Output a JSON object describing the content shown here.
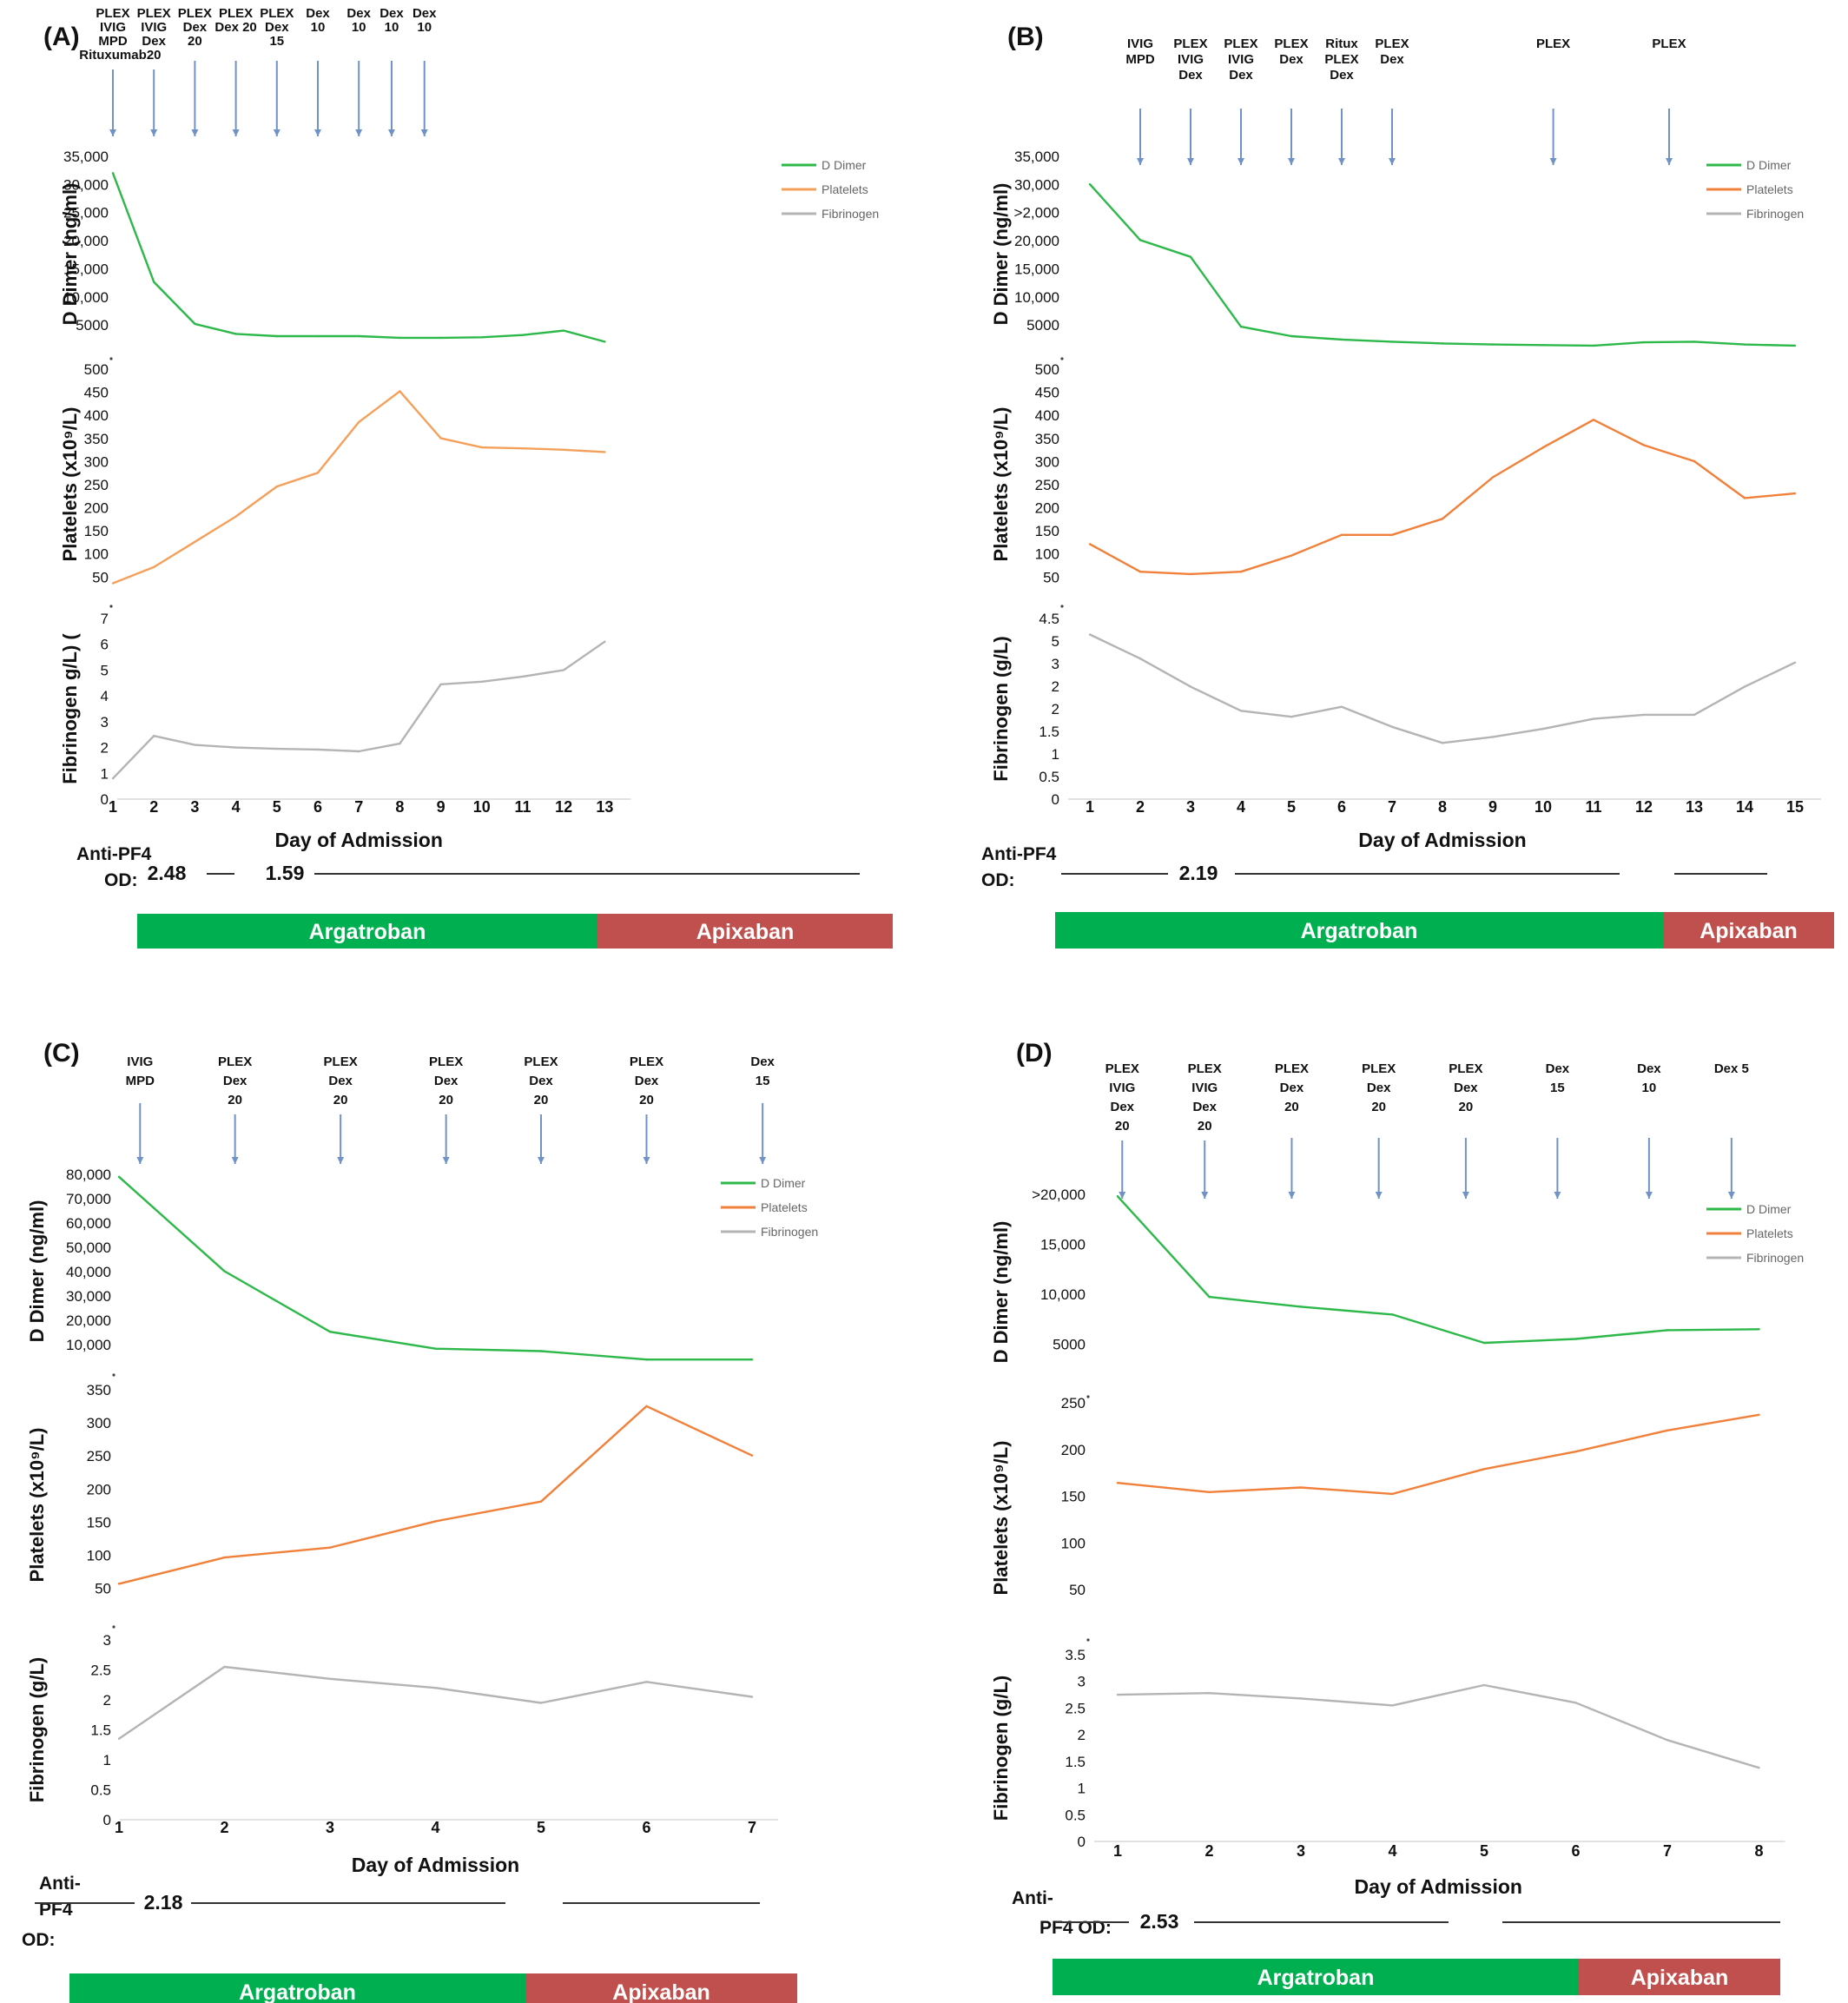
{
  "colors": {
    "ddimer": "#2db84a",
    "platelets": "#f5a05a",
    "platelets_dark": "#f0803a",
    "fibrinogen": "#b4b4b4",
    "arrow": "#6f93c6",
    "argatroban": "#00b050",
    "apixaban": "#c0504d"
  },
  "legend": {
    "ddimer": "D Dimer",
    "platelets": "Platelets",
    "fibrinogen": "Fibrinogen"
  },
  "xlabel": "Day of Admission",
  "chart_data": [
    {
      "type": "line",
      "panel": "(A)",
      "days": [
        "1",
        "2",
        "3",
        "4",
        "5",
        "6",
        "7",
        "8",
        "9",
        "10",
        "11",
        "12",
        "13"
      ],
      "interventions": [
        {
          "day": 1,
          "lines": [
            "PLEX",
            "IVIG",
            "MPD",
            "Rituxumab"
          ]
        },
        {
          "day": 2,
          "lines": [
            "PLEX",
            "IVIG",
            "Dex",
            "20"
          ]
        },
        {
          "day": 3,
          "lines": [
            "PLEX",
            "Dex",
            "20"
          ]
        },
        {
          "day": 4,
          "lines": [
            "PLEX",
            "Dex 20"
          ]
        },
        {
          "day": 5,
          "lines": [
            "PLEX",
            "Dex",
            "15"
          ]
        },
        {
          "day": 6,
          "lines": [
            "Dex",
            "10"
          ]
        },
        {
          "day": 7,
          "lines": [
            "Dex",
            "10"
          ]
        },
        {
          "day": 7.8,
          "lines": [
            "Dex",
            "10"
          ]
        },
        {
          "day": 8.6,
          "lines": [
            "Dex",
            "10"
          ]
        }
      ],
      "ddimer": {
        "ylabel": "D Dimer (ng/ml)",
        "ticks": [
          "35,000",
          "30,000",
          "25,000",
          "20,000",
          "15,000",
          "10,000",
          "5000"
        ],
        "ylim": [
          0,
          35000
        ],
        "x": [
          1,
          2,
          3,
          4,
          5,
          6,
          7,
          8,
          9,
          10,
          11,
          12,
          13
        ],
        "values": [
          32000,
          12500,
          5000,
          3200,
          2800,
          2800,
          2800,
          2500,
          2500,
          2600,
          3000,
          3800,
          1800
        ]
      },
      "platelets": {
        "ylabel": "Platelets (x10⁹/L)",
        "ticks": [
          "500",
          "450",
          "400",
          "350",
          "300",
          "250",
          "200",
          "150",
          "100",
          "50"
        ],
        "ylim": [
          0,
          500
        ],
        "x": [
          1,
          2,
          3,
          4,
          5,
          6,
          7,
          8,
          9,
          10,
          11,
          12,
          13
        ],
        "values": [
          35,
          70,
          125,
          180,
          245,
          275,
          385,
          452,
          350,
          330,
          328,
          325,
          320
        ]
      },
      "fibrinogen": {
        "ylabel": "Fibrinogen g/L) (",
        "ticks": [
          "7",
          "6",
          "5",
          "4",
          "3",
          "2",
          "1",
          "0"
        ],
        "ylim": [
          0,
          7
        ],
        "x": [
          1,
          2,
          3,
          4,
          5,
          6,
          7,
          8,
          9,
          10,
          11,
          12,
          13
        ],
        "values": [
          0.8,
          2.45,
          2.1,
          2.0,
          1.95,
          1.92,
          1.85,
          2.15,
          4.45,
          4.55,
          4.75,
          5.0,
          6.1
        ]
      },
      "antipf4": {
        "label1": "Anti-PF4",
        "label2": "OD:",
        "values": [
          {
            "day": 1,
            "value": "2.48"
          },
          {
            "day": 3,
            "value": "1.59"
          }
        ]
      },
      "medications": [
        {
          "name": "Argatroban",
          "color": "argatroban"
        },
        {
          "name": "Apixaban",
          "color": "apixaban"
        }
      ]
    },
    {
      "type": "line",
      "panel": "(B)",
      "days": [
        "1",
        "2",
        "3",
        "4",
        "5",
        "6",
        "7",
        "8",
        "9",
        "10",
        "11",
        "12",
        "13",
        "14",
        "15"
      ],
      "interventions": [
        {
          "day": 2,
          "lines": [
            "IVIG",
            "MPD"
          ]
        },
        {
          "day": 3,
          "lines": [
            "PLEX",
            "IVIG",
            "Dex"
          ]
        },
        {
          "day": 4,
          "lines": [
            "PLEX",
            "IVIG",
            "Dex"
          ]
        },
        {
          "day": 5,
          "lines": [
            "PLEX",
            "Dex"
          ]
        },
        {
          "day": 6,
          "lines": [
            "Ritux",
            "PLEX",
            "Dex"
          ]
        },
        {
          "day": 7,
          "lines": [
            "PLEX",
            "Dex"
          ]
        },
        {
          "day": 10.2,
          "lines": [
            "PLEX"
          ]
        },
        {
          "day": 12.5,
          "lines": [
            "PLEX"
          ]
        }
      ],
      "ddimer": {
        "ylabel": "D Dimer (ng/ml)",
        "ticks": [
          "35,000",
          "30,000",
          ">2,000",
          "20,000",
          "15,000",
          "10,000",
          "5000"
        ],
        "ylim": [
          0,
          35000
        ],
        "x": [
          1,
          2,
          3,
          4,
          5,
          6,
          7,
          8,
          9,
          10,
          11,
          12,
          13,
          14,
          15
        ],
        "values": [
          30000,
          20000,
          17000,
          4500,
          2800,
          2200,
          1800,
          1500,
          1300,
          1200,
          1100,
          1700,
          1800,
          1300,
          1100
        ]
      },
      "platelets": {
        "ylabel": "Platelets (x10⁹/L)",
        "ticks": [
          "500",
          "450",
          "400",
          "350",
          "300",
          "250",
          "200",
          "150",
          "100",
          "50"
        ],
        "ylim": [
          0,
          500
        ],
        "x": [
          1,
          2,
          3,
          4,
          5,
          6,
          7,
          8,
          9,
          10,
          11,
          12,
          13,
          14,
          15
        ],
        "values": [
          120,
          60,
          55,
          60,
          95,
          140,
          140,
          175,
          265,
          330,
          390,
          335,
          300,
          220,
          230
        ]
      },
      "fibrinogen": {
        "ylabel": "Fibrinogen (g/L)",
        "ticks": [
          "4.5",
          "5",
          "3",
          "2",
          "2",
          "1.5",
          "1",
          "0.5",
          "0"
        ],
        "ylim": [
          0,
          4.5
        ],
        "x": [
          1,
          2,
          3,
          4,
          5,
          6,
          7,
          8,
          9,
          10,
          11,
          12,
          13,
          14,
          15
        ],
        "values": [
          4.1,
          3.5,
          2.8,
          2.2,
          2.05,
          2.3,
          1.8,
          1.4,
          1.55,
          1.75,
          2.0,
          2.1,
          2.1,
          2.8,
          3.4
        ]
      },
      "antipf4": {
        "label1": "Anti-PF4",
        "label2": "OD:",
        "values": [
          {
            "day": 3,
            "value": "2.19"
          }
        ]
      },
      "medications": [
        {
          "name": "Argatroban",
          "color": "argatroban"
        },
        {
          "name": "Apixaban",
          "color": "apixaban"
        }
      ]
    },
    {
      "type": "line",
      "panel": "(C)",
      "days": [
        "1",
        "2",
        "3",
        "4",
        "5",
        "6",
        "7"
      ],
      "interventions": [
        {
          "day": 1.2,
          "lines": [
            "IVIG",
            "MPD"
          ]
        },
        {
          "day": 2.1,
          "lines": [
            "PLEX",
            "Dex",
            "20"
          ]
        },
        {
          "day": 3.1,
          "lines": [
            "PLEX",
            "Dex",
            "20"
          ]
        },
        {
          "day": 4.1,
          "lines": [
            "PLEX",
            "Dex",
            "20"
          ]
        },
        {
          "day": 5.0,
          "lines": [
            "PLEX",
            "Dex",
            "20"
          ]
        },
        {
          "day": 6.0,
          "lines": [
            "PLEX",
            "Dex",
            "20"
          ]
        },
        {
          "day": 7.1,
          "lines": [
            "Dex",
            "15"
          ]
        }
      ],
      "ddimer": {
        "ylabel": "D Dimer (ng/ml)",
        "ticks": [
          "80,000",
          "70,000",
          "60,000",
          "50,000",
          "40,000",
          "30,000",
          "20,000",
          "10,000"
        ],
        "ylim": [
          0,
          80000
        ],
        "x": [
          1,
          2,
          3,
          4,
          5,
          6,
          7
        ],
        "values": [
          79000,
          40000,
          15000,
          8000,
          7000,
          3500,
          3500
        ]
      },
      "platelets": {
        "ylabel": "Platelets (x10⁹/L)",
        "ticks": [
          "350",
          "300",
          "250",
          "200",
          "150",
          "100",
          "50"
        ],
        "ylim": [
          0,
          350
        ],
        "x": [
          1,
          2,
          3,
          4,
          5,
          6,
          7
        ],
        "values": [
          55,
          95,
          110,
          150,
          180,
          325,
          250
        ]
      },
      "fibrinogen": {
        "ylabel": "Fibrinogen (g/L)",
        "ticks": [
          "3",
          "2.5",
          "2",
          "1.5",
          "1",
          "0.5",
          "0"
        ],
        "ylim": [
          0,
          3
        ],
        "x": [
          1,
          2,
          3,
          4,
          5,
          6,
          7
        ],
        "values": [
          1.35,
          2.55,
          2.35,
          2.2,
          1.95,
          2.3,
          2.05
        ]
      },
      "antipf4": {
        "label1": "Anti-",
        "label2": "PF4",
        "label3": "OD:",
        "values": [
          {
            "day": 1.3,
            "value": "2.18"
          }
        ]
      },
      "medications": [
        {
          "name": "Argatroban",
          "color": "argatroban"
        },
        {
          "name": "Apixaban",
          "color": "apixaban"
        }
      ]
    },
    {
      "type": "line",
      "panel": "(D)",
      "days": [
        "1",
        "2",
        "3",
        "4",
        "5",
        "6",
        "7",
        "8"
      ],
      "interventions": [
        {
          "day": 1.05,
          "lines": [
            "PLEX",
            "IVIG",
            "Dex",
            "20"
          ]
        },
        {
          "day": 1.95,
          "lines": [
            "PLEX",
            "IVIG",
            "Dex",
            "20"
          ]
        },
        {
          "day": 2.9,
          "lines": [
            "PLEX",
            "Dex",
            "20"
          ]
        },
        {
          "day": 3.85,
          "lines": [
            "PLEX",
            "Dex",
            "20"
          ]
        },
        {
          "day": 4.8,
          "lines": [
            "PLEX",
            "Dex",
            "20"
          ]
        },
        {
          "day": 5.8,
          "lines": [
            "Dex",
            "15"
          ]
        },
        {
          "day": 6.8,
          "lines": [
            "Dex",
            "10"
          ]
        },
        {
          "day": 7.7,
          "lines": [
            "Dex 5"
          ]
        }
      ],
      "ddimer": {
        "ylabel": "D Dimer (ng/ml)",
        "ticks": [
          ">20,000",
          "15,000",
          "10,000",
          "5000"
        ],
        "ylim": [
          0,
          20000
        ],
        "x": [
          1,
          2,
          3,
          4,
          5,
          6,
          7,
          8
        ],
        "values": [
          19800,
          9500,
          8500,
          7700,
          4800,
          5200,
          6100,
          6200
        ]
      },
      "platelets": {
        "ylabel": "Platelets (x10⁹/L)",
        "ticks": [
          "250",
          "200",
          "150",
          "100",
          "50"
        ],
        "ylim": [
          0,
          250
        ],
        "x": [
          1,
          2,
          3,
          4,
          5,
          6,
          7,
          8
        ],
        "values": [
          163,
          153,
          158,
          151,
          178,
          197,
          220,
          237
        ]
      },
      "fibrinogen": {
        "ylabel": "Fibrinogen (g/L)",
        "ticks": [
          "3.5",
          "3",
          "2.5",
          "2",
          "1.5",
          "1",
          "0.5",
          "0"
        ],
        "ylim": [
          0,
          3.5
        ],
        "x": [
          1,
          2,
          3,
          4,
          5,
          6,
          7,
          8
        ],
        "values": [
          2.75,
          2.78,
          2.68,
          2.55,
          2.93,
          2.6,
          1.9,
          1.38
        ]
      },
      "antipf4": {
        "label1": "Anti-",
        "label2": "PF4 OD:",
        "values": [
          {
            "day": 1.4,
            "value": "2.53"
          }
        ]
      },
      "medications": [
        {
          "name": "Argatroban",
          "color": "argatroban"
        },
        {
          "name": "Apixaban",
          "color": "apixaban"
        }
      ]
    }
  ]
}
